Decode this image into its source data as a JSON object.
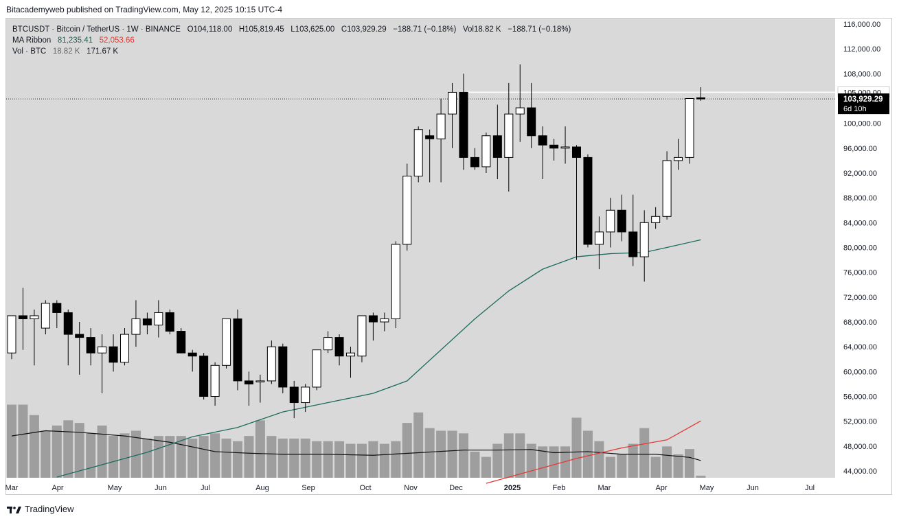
{
  "publisher_line": "Bitacademyweb published on TradingView.com, May 12, 2025 10:15 UTC-4",
  "legend": {
    "symbol": "BTCUSDT · Bitcoin / TetherUS · 1W · BINANCE",
    "open": "O104,118.00",
    "high": "H105,819.45",
    "low": "L103,625.00",
    "close": "C103,929.29",
    "change": "−188.71 (−0.18%)",
    "vol": "Vol18.82 K",
    "vol_change": "−188.71 (−0.18%)",
    "ma_label": "MA Ribbon",
    "ma1": "81,235.41",
    "ma2": "52,053.66",
    "vol_label": "Vol · BTC",
    "vol1": "18.82 K",
    "vol2": "171.67 K"
  },
  "price_tag": {
    "price": "103,929.29",
    "countdown": "6d 10h"
  },
  "level_tag": "105,000.00",
  "footer": "TradingView",
  "colors": {
    "up": "#ffffff",
    "down": "#000000",
    "ma_fast": "#1b6b5c",
    "ma_slow": "#e53935",
    "volume": "#9e9e9e",
    "bg": "#d9d9d9"
  },
  "chart_data": {
    "type": "candlestick",
    "ylim": [
      42000,
      117000
    ],
    "y_ticks": [
      "116,000.00",
      "112,000.00",
      "108,000.00",
      "104,000.00",
      "100,000.00",
      "96,000.00",
      "92,000.00",
      "88,000.00",
      "84,000.00",
      "80,000.00",
      "76,000.00",
      "72,000.00",
      "68,000.00",
      "64,000.00",
      "60,000.00",
      "56,000.00",
      "52,000.00",
      "48,000.00",
      "44,000.00"
    ],
    "x_ticks": [
      "Mar",
      "Apr",
      "May",
      "Jun",
      "Jul",
      "Aug",
      "Sep",
      "Oct",
      "Nov",
      "Dec",
      "2025",
      "Feb",
      "Mar",
      "Apr",
      "May",
      "Jun",
      "Jul"
    ],
    "horizontal_level": 105000,
    "last_close": 103929,
    "candles": [
      [
        63000,
        69000,
        62000,
        69000
      ],
      [
        69000,
        73500,
        63500,
        68500
      ],
      [
        68500,
        70000,
        61000,
        69000
      ],
      [
        67000,
        71500,
        66000,
        71000
      ],
      [
        71000,
        71500,
        67000,
        69500
      ],
      [
        69500,
        70000,
        61000,
        66000
      ],
      [
        66000,
        68000,
        59500,
        65500
      ],
      [
        65500,
        67000,
        61000,
        63000
      ],
      [
        63000,
        66000,
        56500,
        64000
      ],
      [
        64000,
        66000,
        60000,
        61500
      ],
      [
        61500,
        67000,
        61000,
        66000
      ],
      [
        66000,
        71500,
        64000,
        68500
      ],
      [
        68500,
        69500,
        66000,
        67500
      ],
      [
        67500,
        71500,
        65500,
        69500
      ],
      [
        69500,
        70000,
        66000,
        66500
      ],
      [
        66500,
        67000,
        63000,
        63000
      ],
      [
        63000,
        63500,
        60000,
        62500
      ],
      [
        62500,
        63000,
        55500,
        56000
      ],
      [
        56000,
        61500,
        54500,
        61000
      ],
      [
        61000,
        68500,
        60500,
        68500
      ],
      [
        68500,
        70000,
        57000,
        58500
      ],
      [
        58500,
        60000,
        54500,
        58000
      ],
      [
        58500,
        59500,
        55000,
        58500
      ],
      [
        58500,
        65000,
        58000,
        64000
      ],
      [
        64000,
        64500,
        56500,
        57500
      ],
      [
        57500,
        58500,
        52500,
        55000
      ],
      [
        55000,
        58000,
        53500,
        57500
      ],
      [
        57500,
        63500,
        57000,
        63500
      ],
      [
        63500,
        66500,
        63000,
        65500
      ],
      [
        65500,
        66000,
        61000,
        62500
      ],
      [
        62500,
        64000,
        59000,
        63000
      ],
      [
        62500,
        69000,
        61500,
        69000
      ],
      [
        69000,
        69500,
        65000,
        68000
      ],
      [
        68000,
        69500,
        66500,
        68500
      ],
      [
        68500,
        81000,
        67000,
        80500
      ],
      [
        80500,
        93500,
        79500,
        91500
      ],
      [
        91500,
        99500,
        90500,
        99000
      ],
      [
        98000,
        99000,
        90500,
        97500
      ],
      [
        97500,
        104000,
        90500,
        101500
      ],
      [
        101500,
        106500,
        96000,
        105000
      ],
      [
        105000,
        108000,
        92500,
        94500
      ],
      [
        94500,
        96000,
        92500,
        93000
      ],
      [
        93000,
        98500,
        92000,
        98000
      ],
      [
        98000,
        103000,
        91000,
        94500
      ],
      [
        94500,
        106500,
        89000,
        101500
      ],
      [
        101500,
        109500,
        97000,
        102500
      ],
      [
        102500,
        106500,
        96000,
        98000
      ],
      [
        98000,
        99500,
        91000,
        96500
      ],
      [
        96500,
        97500,
        94000,
        96000
      ],
      [
        96000,
        99500,
        93500,
        96200
      ],
      [
        96200,
        96500,
        78000,
        94500
      ],
      [
        94500,
        95000,
        80000,
        80500
      ],
      [
        80500,
        85000,
        76500,
        82500
      ],
      [
        82500,
        88000,
        80000,
        86000
      ],
      [
        86000,
        88500,
        81000,
        82500
      ],
      [
        82500,
        88500,
        77000,
        78500
      ],
      [
        78500,
        86000,
        74500,
        84000
      ],
      [
        84000,
        86500,
        83000,
        85000
      ],
      [
        85000,
        95500,
        84500,
        94000
      ],
      [
        94000,
        97500,
        92500,
        94500
      ],
      [
        94500,
        104000,
        93500,
        104000
      ],
      [
        104118,
        105819,
        103625,
        103929
      ]
    ],
    "volume": [
      14000,
      14000,
      12000,
      9000,
      10000,
      11000,
      10500,
      8500,
      10000,
      8000,
      8500,
      9000,
      7500,
      8000,
      8000,
      8000,
      7500,
      8000,
      8500,
      7500,
      7000,
      8000,
      11000,
      8000,
      7500,
      7500,
      7500,
      7000,
      7000,
      7000,
      6500,
      6500,
      7000,
      6500,
      7000,
      10500,
      12500,
      9500,
      9000,
      9000,
      8500,
      5000,
      4000,
      6500,
      8500,
      8500,
      6500,
      6000,
      6000,
      6000,
      11500,
      9000,
      7000,
      4000,
      4500,
      6500,
      9500,
      4000,
      6000,
      4500,
      5500,
      400
    ],
    "volume_range": [
      0,
      23000
    ],
    "ma_fast": [
      [
        4,
        43000
      ],
      [
        12,
        47000
      ],
      [
        16,
        49500
      ],
      [
        20,
        51000
      ],
      [
        24,
        53500
      ],
      [
        28,
        55000
      ],
      [
        32,
        56500
      ],
      [
        35,
        58500
      ],
      [
        38,
        63500
      ],
      [
        41,
        68500
      ],
      [
        44,
        73000
      ],
      [
        47,
        76500
      ],
      [
        50,
        78500
      ],
      [
        53,
        79000
      ],
      [
        56,
        79200
      ],
      [
        58,
        80000
      ],
      [
        61,
        81235
      ]
    ],
    "ma_slow": [
      [
        42,
        42000
      ],
      [
        46,
        44000
      ],
      [
        50,
        46000
      ],
      [
        54,
        47700
      ],
      [
        58,
        49000
      ],
      [
        61,
        52054
      ]
    ],
    "vol_ma": [
      [
        0,
        8000
      ],
      [
        3,
        9000
      ],
      [
        6,
        8700
      ],
      [
        10,
        8000
      ],
      [
        14,
        6800
      ],
      [
        18,
        5000
      ],
      [
        21,
        4700
      ],
      [
        24,
        4500
      ],
      [
        28,
        4500
      ],
      [
        32,
        4300
      ],
      [
        36,
        4800
      ],
      [
        40,
        5300
      ],
      [
        43,
        5300
      ],
      [
        46,
        5400
      ],
      [
        48,
        4800
      ],
      [
        51,
        5000
      ],
      [
        54,
        4500
      ],
      [
        57,
        4500
      ],
      [
        60,
        3900
      ],
      [
        61,
        3300
      ]
    ]
  }
}
